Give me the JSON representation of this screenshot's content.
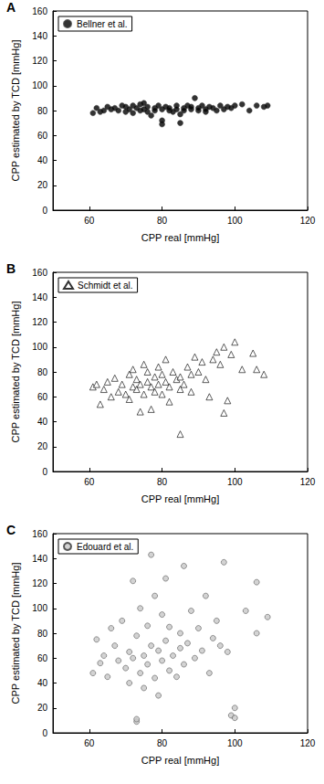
{
  "chart_data": [
    {
      "type": "scatter",
      "title": "A",
      "x_label": "CPP real [mmHg]",
      "y_label": "CPP estimated by TCD [mmHg]",
      "xlim": [
        50,
        120
      ],
      "xticks": [
        60,
        80,
        100,
        120
      ],
      "ylim": [
        0,
        160
      ],
      "yticks": [
        0,
        20,
        40,
        60,
        80,
        100,
        120,
        140,
        160
      ],
      "grid": false,
      "legend": "upper left",
      "series": [
        {
          "name": "Bellner et al.",
          "color": "#000000",
          "marker": "circle",
          "x": [
            61,
            62,
            63,
            64,
            65,
            66,
            67,
            68,
            69,
            70,
            70,
            71,
            72,
            72,
            73,
            74,
            74,
            75,
            76,
            76,
            77,
            78,
            78,
            79,
            80,
            80,
            81,
            82,
            82,
            83,
            84,
            84,
            85,
            86,
            86,
            87,
            88,
            88,
            89,
            90,
            90,
            91,
            92,
            92,
            93,
            94,
            95,
            96,
            97,
            98,
            99,
            100,
            102,
            104,
            106,
            108,
            109,
            75,
            80,
            85
          ],
          "values": [
            78,
            82,
            79,
            80,
            83,
            81,
            82,
            80,
            84,
            79,
            83,
            81,
            84,
            78,
            82,
            80,
            85,
            81,
            79,
            83,
            76,
            82,
            80,
            84,
            81,
            69,
            83,
            80,
            82,
            79,
            84,
            81,
            77,
            82,
            80,
            84,
            81,
            83,
            90,
            80,
            82,
            84,
            79,
            81,
            83,
            82,
            80,
            84,
            81,
            83,
            82,
            84,
            85,
            80,
            84,
            83,
            84,
            86,
            72,
            70
          ]
        }
      ]
    },
    {
      "type": "scatter",
      "title": "B",
      "x_label": "CPP real [mmHg]",
      "y_label": "CPP estimated by TCD [mmHg]",
      "xlim": [
        50,
        120
      ],
      "xticks": [
        60,
        80,
        100,
        120
      ],
      "ylim": [
        0,
        160
      ],
      "yticks": [
        0,
        20,
        40,
        60,
        80,
        100,
        120,
        140,
        160
      ],
      "grid": false,
      "legend": "upper left",
      "series": [
        {
          "name": "Schmidt et al.",
          "color": "#000000",
          "marker": "triangle",
          "x": [
            61,
            62,
            63,
            64,
            65,
            66,
            67,
            68,
            69,
            70,
            71,
            71,
            72,
            72,
            73,
            73,
            74,
            74,
            75,
            75,
            76,
            76,
            77,
            77,
            78,
            78,
            79,
            79,
            80,
            80,
            81,
            81,
            82,
            82,
            83,
            84,
            85,
            85,
            86,
            87,
            88,
            88,
            89,
            90,
            91,
            92,
            93,
            94,
            95,
            96,
            97,
            97,
            98,
            99,
            100,
            102,
            105,
            106,
            108,
            85
          ],
          "values": [
            68,
            70,
            54,
            66,
            72,
            60,
            75,
            64,
            70,
            62,
            78,
            58,
            68,
            82,
            66,
            74,
            48,
            70,
            86,
            62,
            72,
            80,
            50,
            68,
            76,
            64,
            84,
            70,
            62,
            78,
            72,
            90,
            68,
            56,
            80,
            74,
            30,
            76,
            70,
            84,
            78,
            64,
            92,
            80,
            88,
            74,
            60,
            90,
            96,
            86,
            47,
            100,
            57,
            94,
            104,
            82,
            95,
            82,
            78,
            66
          ]
        }
      ]
    },
    {
      "type": "scatter",
      "title": "C",
      "x_label": "CPP real [mmHg]",
      "y_label": "CPP estimated by TCD [mmHg]",
      "xlim": [
        50,
        120
      ],
      "xticks": [
        60,
        80,
        100,
        120
      ],
      "ylim": [
        0,
        160
      ],
      "yticks": [
        0,
        20,
        40,
        60,
        80,
        100,
        120,
        140,
        160
      ],
      "grid": false,
      "legend": "upper left",
      "series": [
        {
          "name": "Edouard et al.",
          "color": "#c8c8c8",
          "marker": "circle",
          "x": [
            61,
            62,
            63,
            64,
            65,
            66,
            67,
            68,
            69,
            70,
            71,
            71,
            72,
            72,
            73,
            73,
            73,
            74,
            74,
            75,
            75,
            76,
            76,
            77,
            77,
            78,
            78,
            79,
            79,
            80,
            80,
            81,
            81,
            82,
            82,
            83,
            84,
            85,
            85,
            86,
            86,
            87,
            88,
            89,
            90,
            91,
            92,
            93,
            94,
            95,
            96,
            97,
            98,
            99,
            100,
            100,
            103,
            106,
            106,
            109
          ],
          "values": [
            48,
            75,
            56,
            62,
            45,
            84,
            70,
            58,
            90,
            52,
            65,
            40,
            122,
            60,
            9,
            11,
            78,
            48,
            100,
            62,
            36,
            86,
            55,
            143,
            70,
            44,
            110,
            66,
            30,
            95,
            58,
            74,
            124,
            50,
            85,
            62,
            45,
            80,
            68,
            134,
            55,
            72,
            98,
            60,
            84,
            66,
            110,
            48,
            76,
            90,
            70,
            137,
            65,
            14,
            20,
            12,
            98,
            80,
            121,
            93
          ]
        }
      ]
    }
  ]
}
